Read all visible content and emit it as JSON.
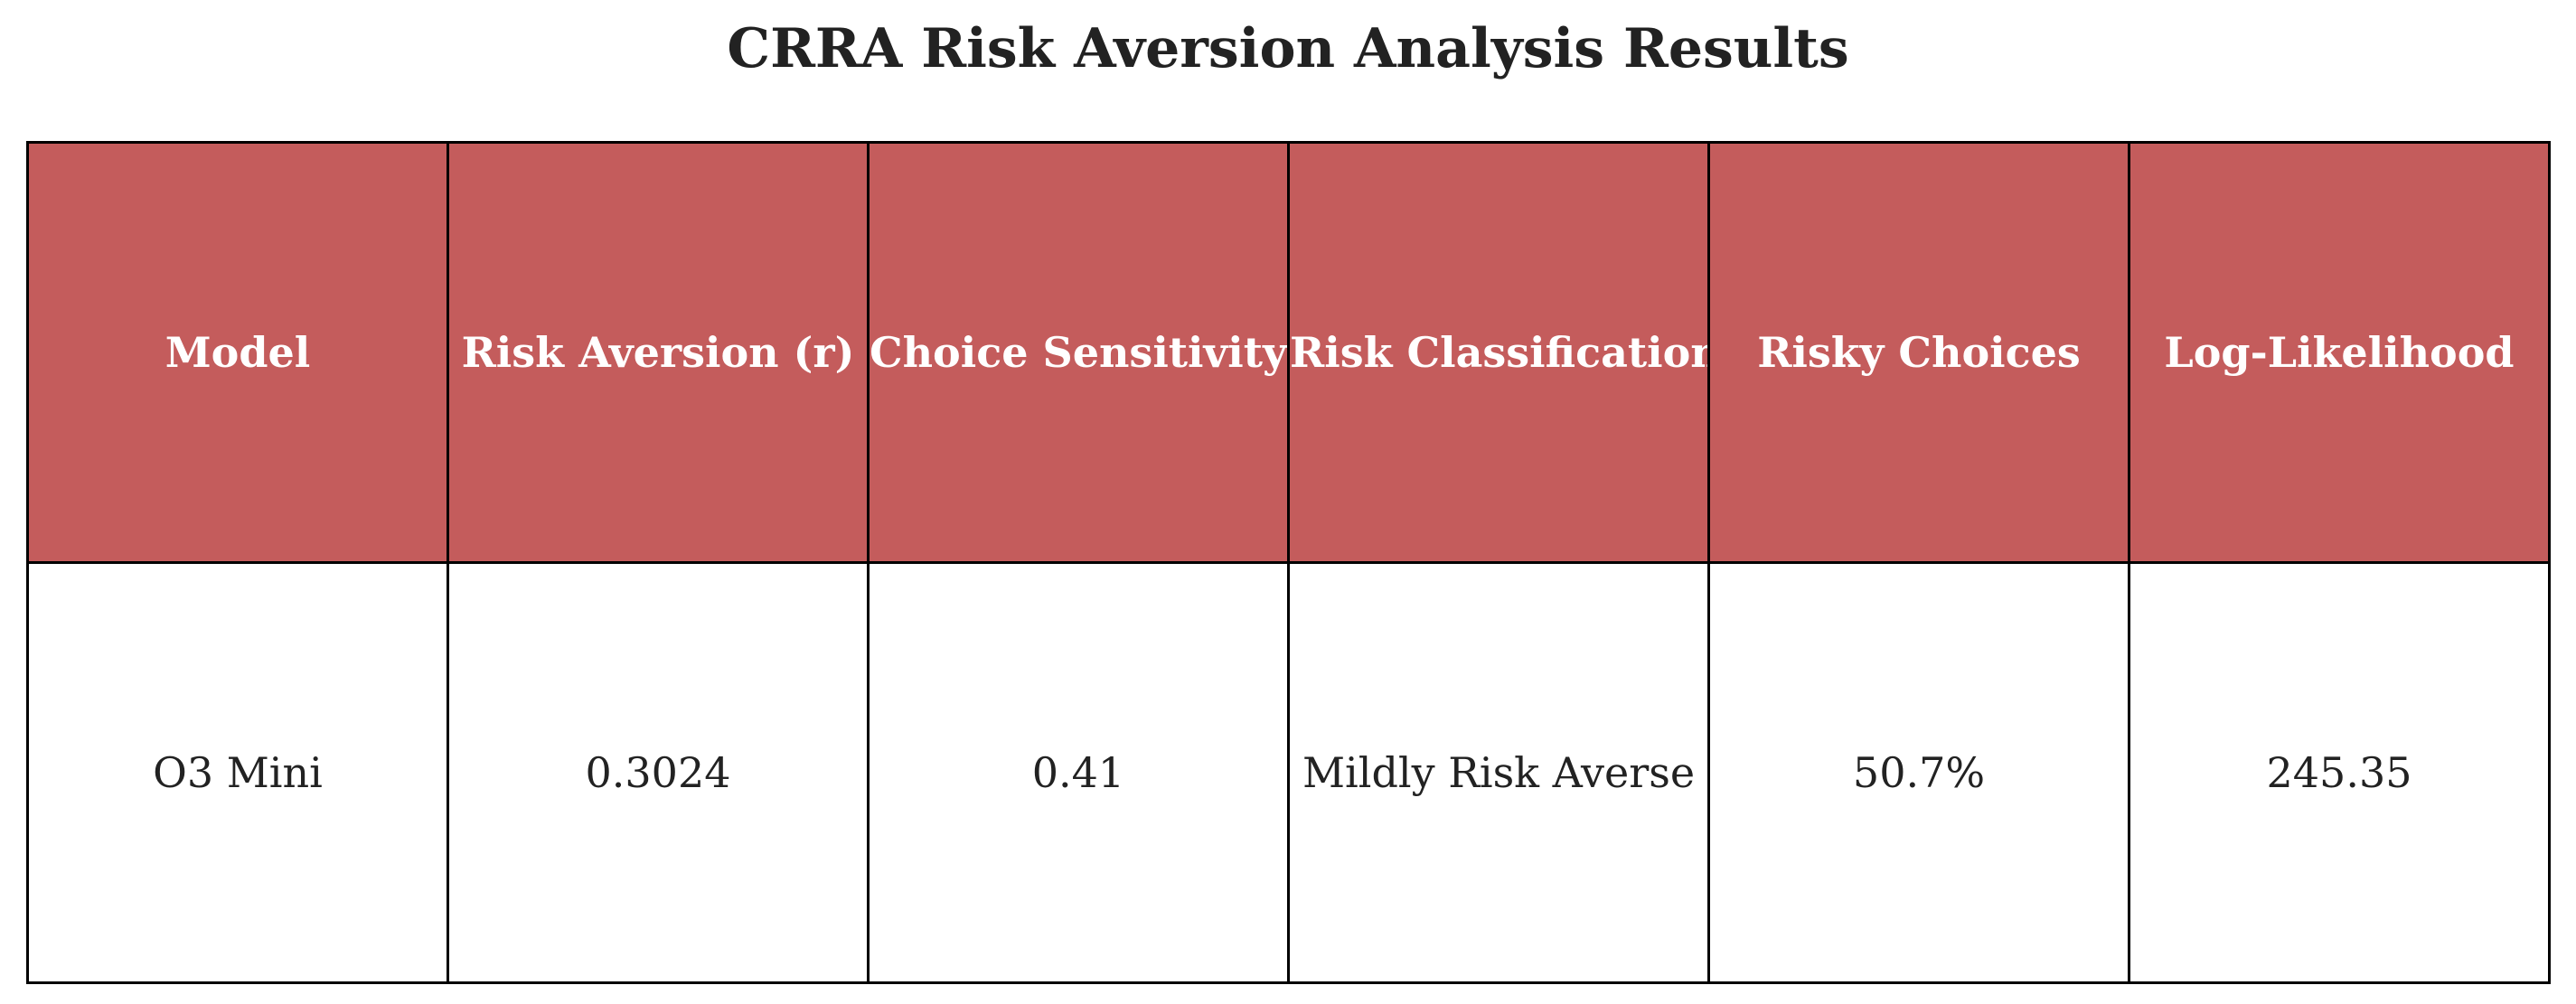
{
  "chart_data": {
    "type": "table",
    "title": "CRRA Risk Aversion Analysis Results",
    "columns": [
      "Model",
      "Risk Aversion (r)",
      "Choice Sensitivity (λ)",
      "Risk Classification",
      "Risky Choices",
      "Log-Likelihood"
    ],
    "rows": [
      [
        "O3 Mini",
        "0.3024",
        "0.41",
        "Mildly Risk Averse",
        "50.7%",
        "245.35"
      ]
    ],
    "header_color": "#c45c5c",
    "border_color": "#000000"
  }
}
